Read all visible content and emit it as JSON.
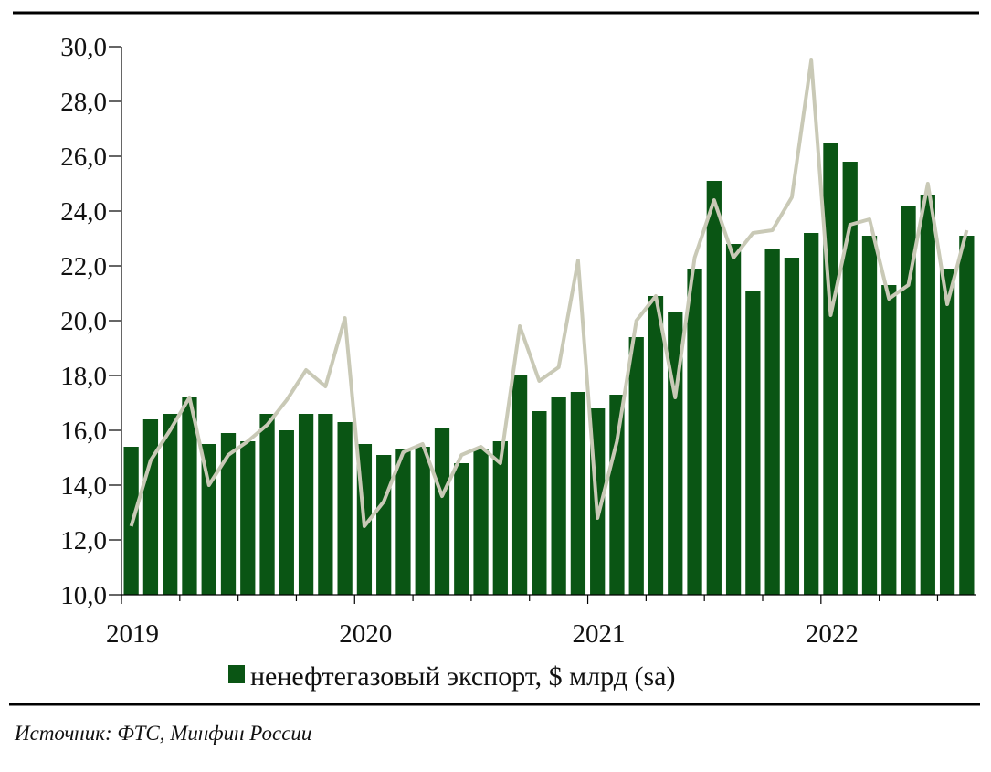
{
  "chart_data": {
    "type": "bar",
    "title": "",
    "xlabel": "",
    "ylabel": "",
    "ylim": [
      10,
      30
    ],
    "yticks": [
      "10,0",
      "12,0",
      "14,0",
      "16,0",
      "18,0",
      "20,0",
      "22,0",
      "24,0",
      "26,0",
      "28,0",
      "30,0"
    ],
    "ytick_values": [
      10,
      12,
      14,
      16,
      18,
      20,
      22,
      24,
      26,
      28,
      30
    ],
    "xtick_labels": [
      "2019",
      "2020",
      "2021",
      "2022"
    ],
    "x_start": "2019-01",
    "x_end": "2022-08",
    "frequency": "monthly",
    "grid": false,
    "legend_position": "bottom",
    "series": [
      {
        "name": "ненефтегазовый экспорт, $ млрд (sa)",
        "type": "bar",
        "color": "#0a5514",
        "values": [
          15.4,
          16.4,
          16.6,
          17.2,
          15.5,
          15.9,
          15.6,
          16.6,
          16.0,
          16.6,
          16.6,
          16.3,
          15.5,
          15.1,
          15.3,
          15.4,
          16.1,
          14.8,
          15.3,
          15.6,
          18.0,
          16.7,
          17.2,
          17.4,
          16.8,
          17.3,
          19.4,
          20.9,
          20.3,
          21.9,
          25.1,
          22.8,
          21.1,
          22.6,
          22.3,
          23.2,
          26.5,
          25.8,
          23.1,
          21.3,
          24.2,
          24.6,
          21.9,
          23.1
        ]
      },
      {
        "type": "line",
        "color": "#c9c9b6",
        "values": [
          12.5,
          14.9,
          16.0,
          17.2,
          14.0,
          15.1,
          15.6,
          16.2,
          17.1,
          18.2,
          17.6,
          20.1,
          12.5,
          13.4,
          15.2,
          15.5,
          13.6,
          15.1,
          15.4,
          14.8,
          19.8,
          17.8,
          18.3,
          22.2,
          12.8,
          15.6,
          20.0,
          20.9,
          17.2,
          22.3,
          24.4,
          22.3,
          23.2,
          23.3,
          24.5,
          29.5,
          20.2,
          23.5,
          23.7,
          20.8,
          21.3,
          25.0,
          20.6,
          23.3
        ]
      }
    ]
  },
  "legend": {
    "label": "ненефтегазовый экспорт, $ млрд (sa)"
  },
  "source": "Источник: ФТС, Минфин России"
}
